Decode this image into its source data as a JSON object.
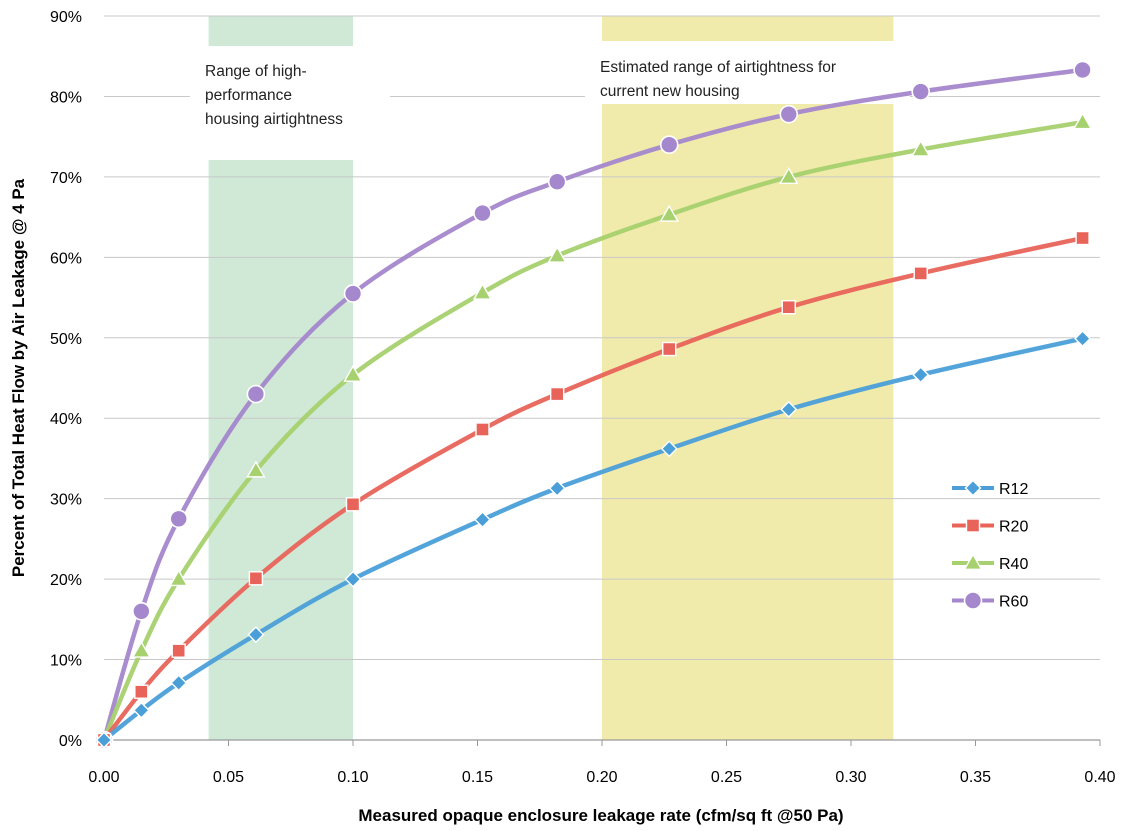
{
  "chart_data": {
    "type": "line",
    "title": "",
    "xlabel": "Measured opaque enclosure leakage rate (cfm/sq ft @50 Pa)",
    "ylabel": "Percent of Total Heat Flow by Air Leakage @ 4 Pa",
    "xlim": [
      0,
      0.4
    ],
    "ylim": [
      0,
      90
    ],
    "x_ticks": [
      "0.00",
      "0.05",
      "0.10",
      "0.15",
      "0.20",
      "0.25",
      "0.30",
      "0.35",
      "0.40"
    ],
    "y_ticks": [
      "0%",
      "10%",
      "20%",
      "30%",
      "40%",
      "50%",
      "60%",
      "70%",
      "80%",
      "90%"
    ],
    "grid": "horizontal",
    "legend_position": "right",
    "bands": [
      {
        "x_range": [
          0.042,
          0.1
        ],
        "color": "#cfe9d6",
        "label": "Range of high-performance housing airtightness",
        "label_lines": [
          "Range of high-",
          "performance",
          "housing airtightness"
        ]
      },
      {
        "x_range": [
          0.2,
          0.317
        ],
        "color": "#f1ebab",
        "label": "Estimated range of airtightness for current new housing",
        "label_lines": [
          "Estimated range of airtightness for",
          "current new housing"
        ]
      }
    ],
    "series": [
      {
        "name": "R12",
        "color": "#4a9fd8",
        "marker": "diamond",
        "x": [
          0,
          0.015,
          0.03,
          0.061,
          0.1,
          0.152,
          0.182,
          0.227,
          0.275,
          0.328,
          0.393
        ],
        "y": [
          0,
          3.7,
          7.1,
          13.1,
          20.0,
          27.4,
          31.3,
          36.2,
          41.1,
          45.4,
          49.9
        ]
      },
      {
        "name": "R20",
        "color": "#e8645a",
        "marker": "square",
        "x": [
          0,
          0.015,
          0.03,
          0.061,
          0.1,
          0.152,
          0.182,
          0.227,
          0.275,
          0.328,
          0.393
        ],
        "y": [
          0,
          6.0,
          11.1,
          20.1,
          29.3,
          38.6,
          43.0,
          48.6,
          53.8,
          58.0,
          62.4
        ]
      },
      {
        "name": "R40",
        "color": "#a6d16e",
        "marker": "triangle",
        "x": [
          0,
          0.015,
          0.03,
          0.061,
          0.1,
          0.152,
          0.182,
          0.227,
          0.275,
          0.328,
          0.393
        ],
        "y": [
          0,
          11.1,
          20.0,
          33.5,
          45.4,
          55.6,
          60.2,
          65.3,
          70.0,
          73.4,
          76.8
        ]
      },
      {
        "name": "R60",
        "color": "#a487cc",
        "marker": "circle",
        "x": [
          0,
          0.015,
          0.03,
          0.061,
          0.1,
          0.152,
          0.182,
          0.227,
          0.275,
          0.328,
          0.393
        ],
        "y": [
          0,
          16.0,
          27.5,
          43.0,
          55.5,
          65.5,
          69.4,
          74.0,
          77.8,
          80.6,
          83.3
        ]
      }
    ]
  }
}
